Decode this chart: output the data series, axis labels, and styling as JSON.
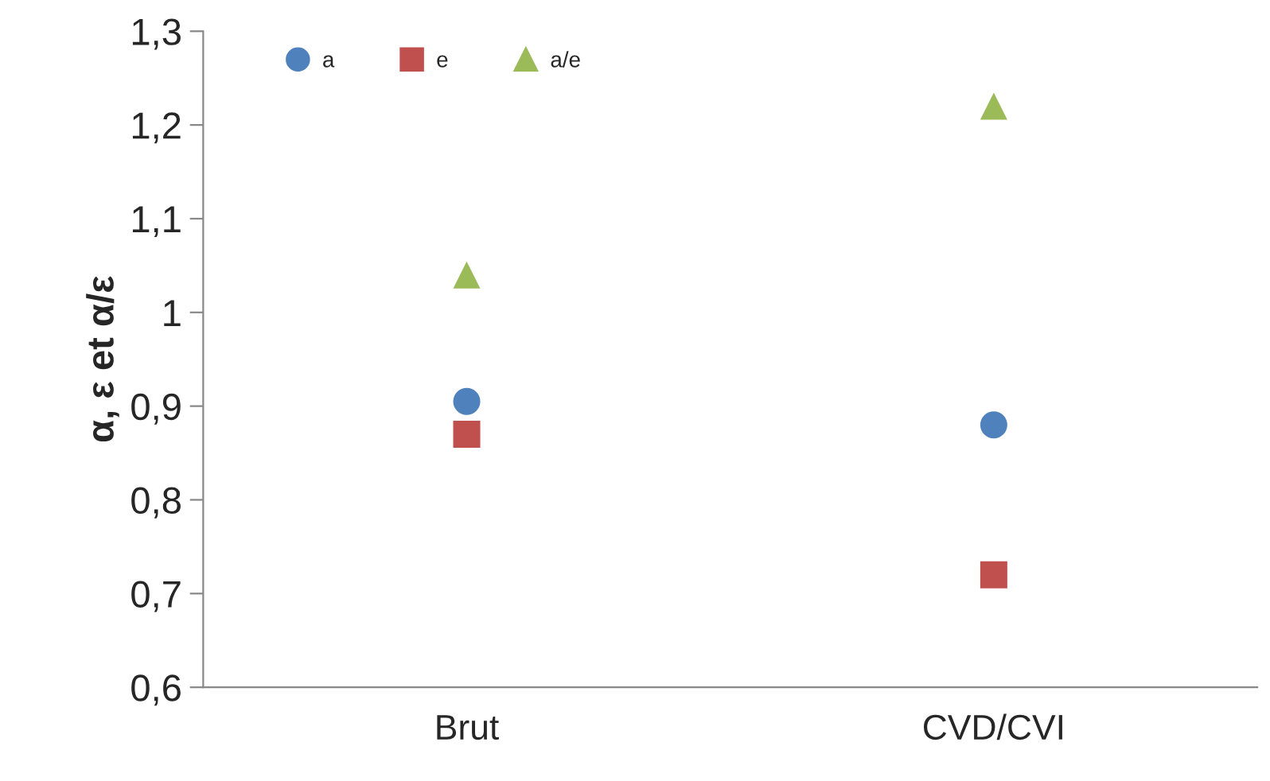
{
  "chart_data": {
    "type": "scatter",
    "ylabel": "α, ε et α/ε",
    "categories": [
      "Brut",
      "CVD/CVI"
    ],
    "series": [
      {
        "name": "a",
        "color": "#4f81bd",
        "marker": "circle",
        "values": [
          0.905,
          0.88
        ]
      },
      {
        "name": "e",
        "color": "#c0504d",
        "marker": "square",
        "values": [
          0.87,
          0.72
        ]
      },
      {
        "name": "a/e",
        "color": "#9bbb59",
        "marker": "triangle",
        "values": [
          1.04,
          1.22
        ]
      }
    ],
    "ylim": [
      0.6,
      1.3
    ],
    "yticks": [
      {
        "value": 0.6,
        "label": "0,6"
      },
      {
        "value": 0.7,
        "label": "0,7"
      },
      {
        "value": 0.8,
        "label": "0,8"
      },
      {
        "value": 0.9,
        "label": "0,9"
      },
      1,
      {
        "value": 1.1,
        "label": "1,1"
      },
      {
        "value": 1.2,
        "label": "1,2"
      },
      {
        "value": 1.3,
        "label": "1,3"
      }
    ],
    "grid": false,
    "legend": "top left"
  }
}
